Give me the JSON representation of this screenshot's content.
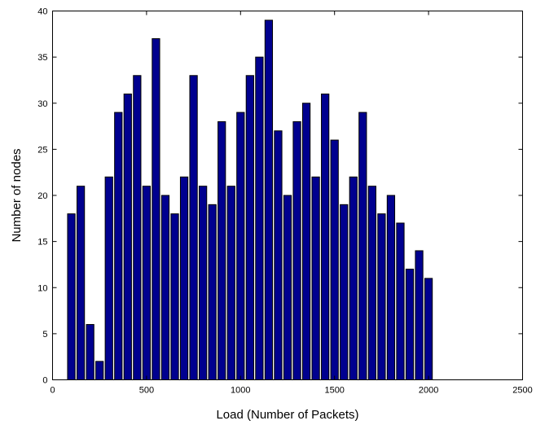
{
  "chart_data": {
    "type": "bar",
    "xlabel": "Load (Number of Packets)",
    "ylabel": "Number of nodes",
    "xlim": [
      0,
      2500
    ],
    "ylim": [
      0,
      40
    ],
    "xticks": [
      0,
      500,
      1000,
      1500,
      2000,
      2500
    ],
    "yticks": [
      0,
      5,
      10,
      15,
      20,
      25,
      30,
      35,
      40
    ],
    "bin_width": 50,
    "x": [
      100,
      150,
      200,
      250,
      300,
      350,
      400,
      450,
      500,
      550,
      600,
      650,
      700,
      750,
      800,
      850,
      900,
      950,
      1000,
      1050,
      1100,
      1150,
      1200,
      1250,
      1300,
      1350,
      1400,
      1450,
      1500,
      1550,
      1600,
      1650,
      1700,
      1750,
      1800,
      1850,
      1900,
      1950,
      2000
    ],
    "values": [
      18,
      21,
      6,
      2,
      22,
      29,
      31,
      33,
      21,
      37,
      20,
      18,
      22,
      33,
      21,
      19,
      28,
      21,
      29,
      33,
      35,
      39,
      27,
      20,
      28,
      30,
      22,
      31,
      26,
      19,
      22,
      29,
      21,
      18,
      20,
      17,
      12,
      14,
      11
    ],
    "bar_color": "#00008f",
    "grid": false,
    "legend": "none"
  }
}
